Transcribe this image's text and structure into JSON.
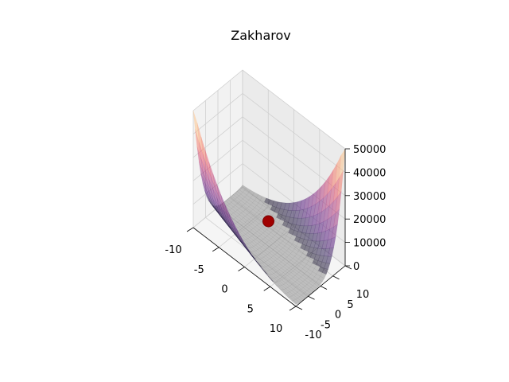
{
  "chart_data": {
    "type": "surface3d",
    "title": "Zakharov",
    "xlabel": "",
    "ylabel": "",
    "zlabel": "",
    "x_range": [
      -10,
      10
    ],
    "y_range": [
      -10,
      10
    ],
    "z_range": [
      0,
      50000
    ],
    "x_ticks": [
      -10,
      -5,
      0,
      5,
      10
    ],
    "y_ticks": [
      -10,
      -5,
      0,
      5,
      10
    ],
    "z_ticks": [
      0,
      10000,
      20000,
      30000,
      40000,
      50000
    ],
    "grid": true,
    "colormap": "magma",
    "surface_alpha": 0.5,
    "minimum_point": {
      "x": 0,
      "y": 0,
      "z": 0,
      "color": "#a00000"
    },
    "floor_color": "#888888"
  }
}
